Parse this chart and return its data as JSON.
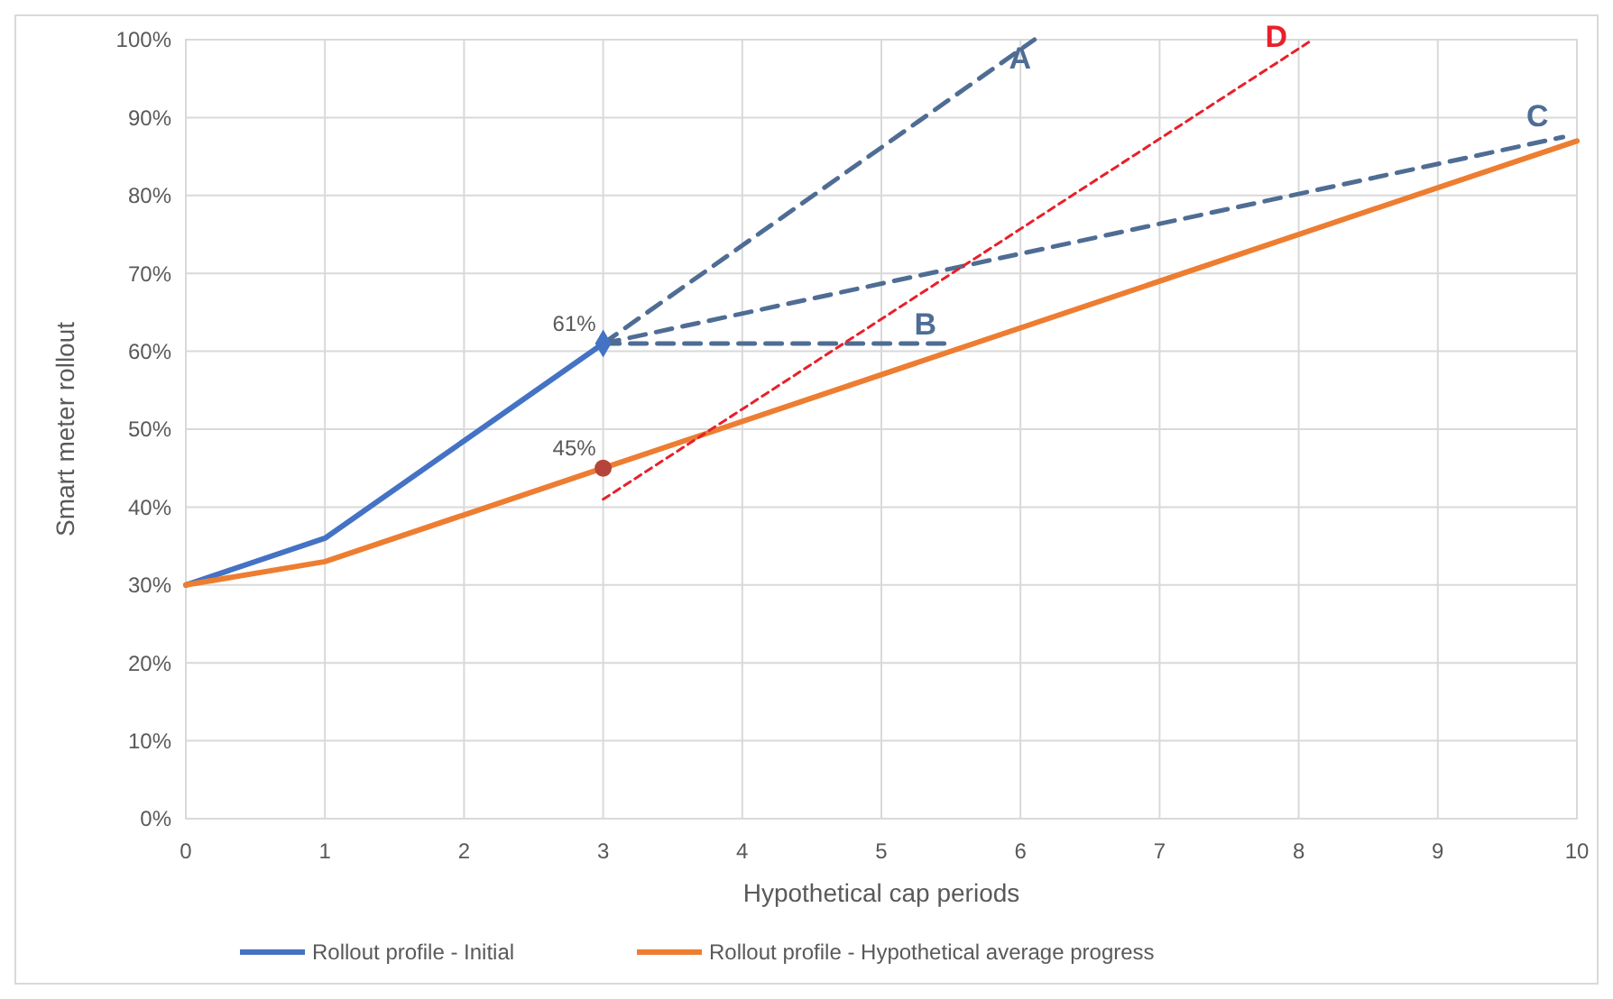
{
  "chart_data": {
    "type": "line",
    "xlabel": "Hypothetical cap periods",
    "ylabel": "Smart meter rollout",
    "xlim": [
      0,
      10
    ],
    "xticks": [
      0,
      1,
      2,
      3,
      4,
      5,
      6,
      7,
      8,
      9,
      10
    ],
    "ylim": [
      0,
      100
    ],
    "yticks": [
      {
        "value": 0,
        "label": "0%"
      },
      {
        "value": 10,
        "label": "10%"
      },
      {
        "value": 20,
        "label": "20%"
      },
      {
        "value": 30,
        "label": "30%"
      },
      {
        "value": 40,
        "label": "40%"
      },
      {
        "value": 50,
        "label": "50%"
      },
      {
        "value": 60,
        "label": "60%"
      },
      {
        "value": 70,
        "label": "70%"
      },
      {
        "value": 80,
        "label": "80%"
      },
      {
        "value": 90,
        "label": "90%"
      },
      {
        "value": 100,
        "label": "100%"
      }
    ],
    "grid": true,
    "legend": "bottom",
    "series": [
      {
        "name": "Rollout profile - Initial",
        "color": "#4472c4",
        "x": [
          0,
          1,
          2,
          3
        ],
        "values": [
          30,
          36,
          48.5,
          61
        ],
        "line_style": "solid"
      },
      {
        "name": "Rollout profile - Hypothetical average progress",
        "color": "#ed7d31",
        "x": [
          0,
          1,
          2,
          3,
          10
        ],
        "values": [
          30,
          33,
          39,
          45,
          87
        ],
        "line_style": "solid"
      },
      {
        "name": "A",
        "color": "#4f6d94",
        "x": [
          3,
          6.1
        ],
        "values": [
          61,
          100
        ],
        "line_style": "dashed"
      },
      {
        "name": "B",
        "color": "#4f6d94",
        "x": [
          3,
          5.5
        ],
        "values": [
          61,
          61
        ],
        "line_style": "dashed"
      },
      {
        "name": "C",
        "color": "#4f6d94",
        "x": [
          3,
          9.9
        ],
        "values": [
          61,
          87.5
        ],
        "line_style": "dashed"
      },
      {
        "name": "D",
        "color": "#e8202a",
        "x": [
          3,
          8.1
        ],
        "values": [
          41,
          100
        ],
        "line_style": "dotted"
      },
      {
        "type": "scatter",
        "color": "#4472c4",
        "x": [
          3
        ],
        "values": [
          61
        ],
        "value_labels": [
          "61%"
        ],
        "marker": "diamond"
      },
      {
        "type": "scatter",
        "color": "#b5443a",
        "x": [
          3
        ],
        "values": [
          45
        ],
        "value_labels": [
          "45%"
        ],
        "marker": "circle"
      }
    ]
  }
}
